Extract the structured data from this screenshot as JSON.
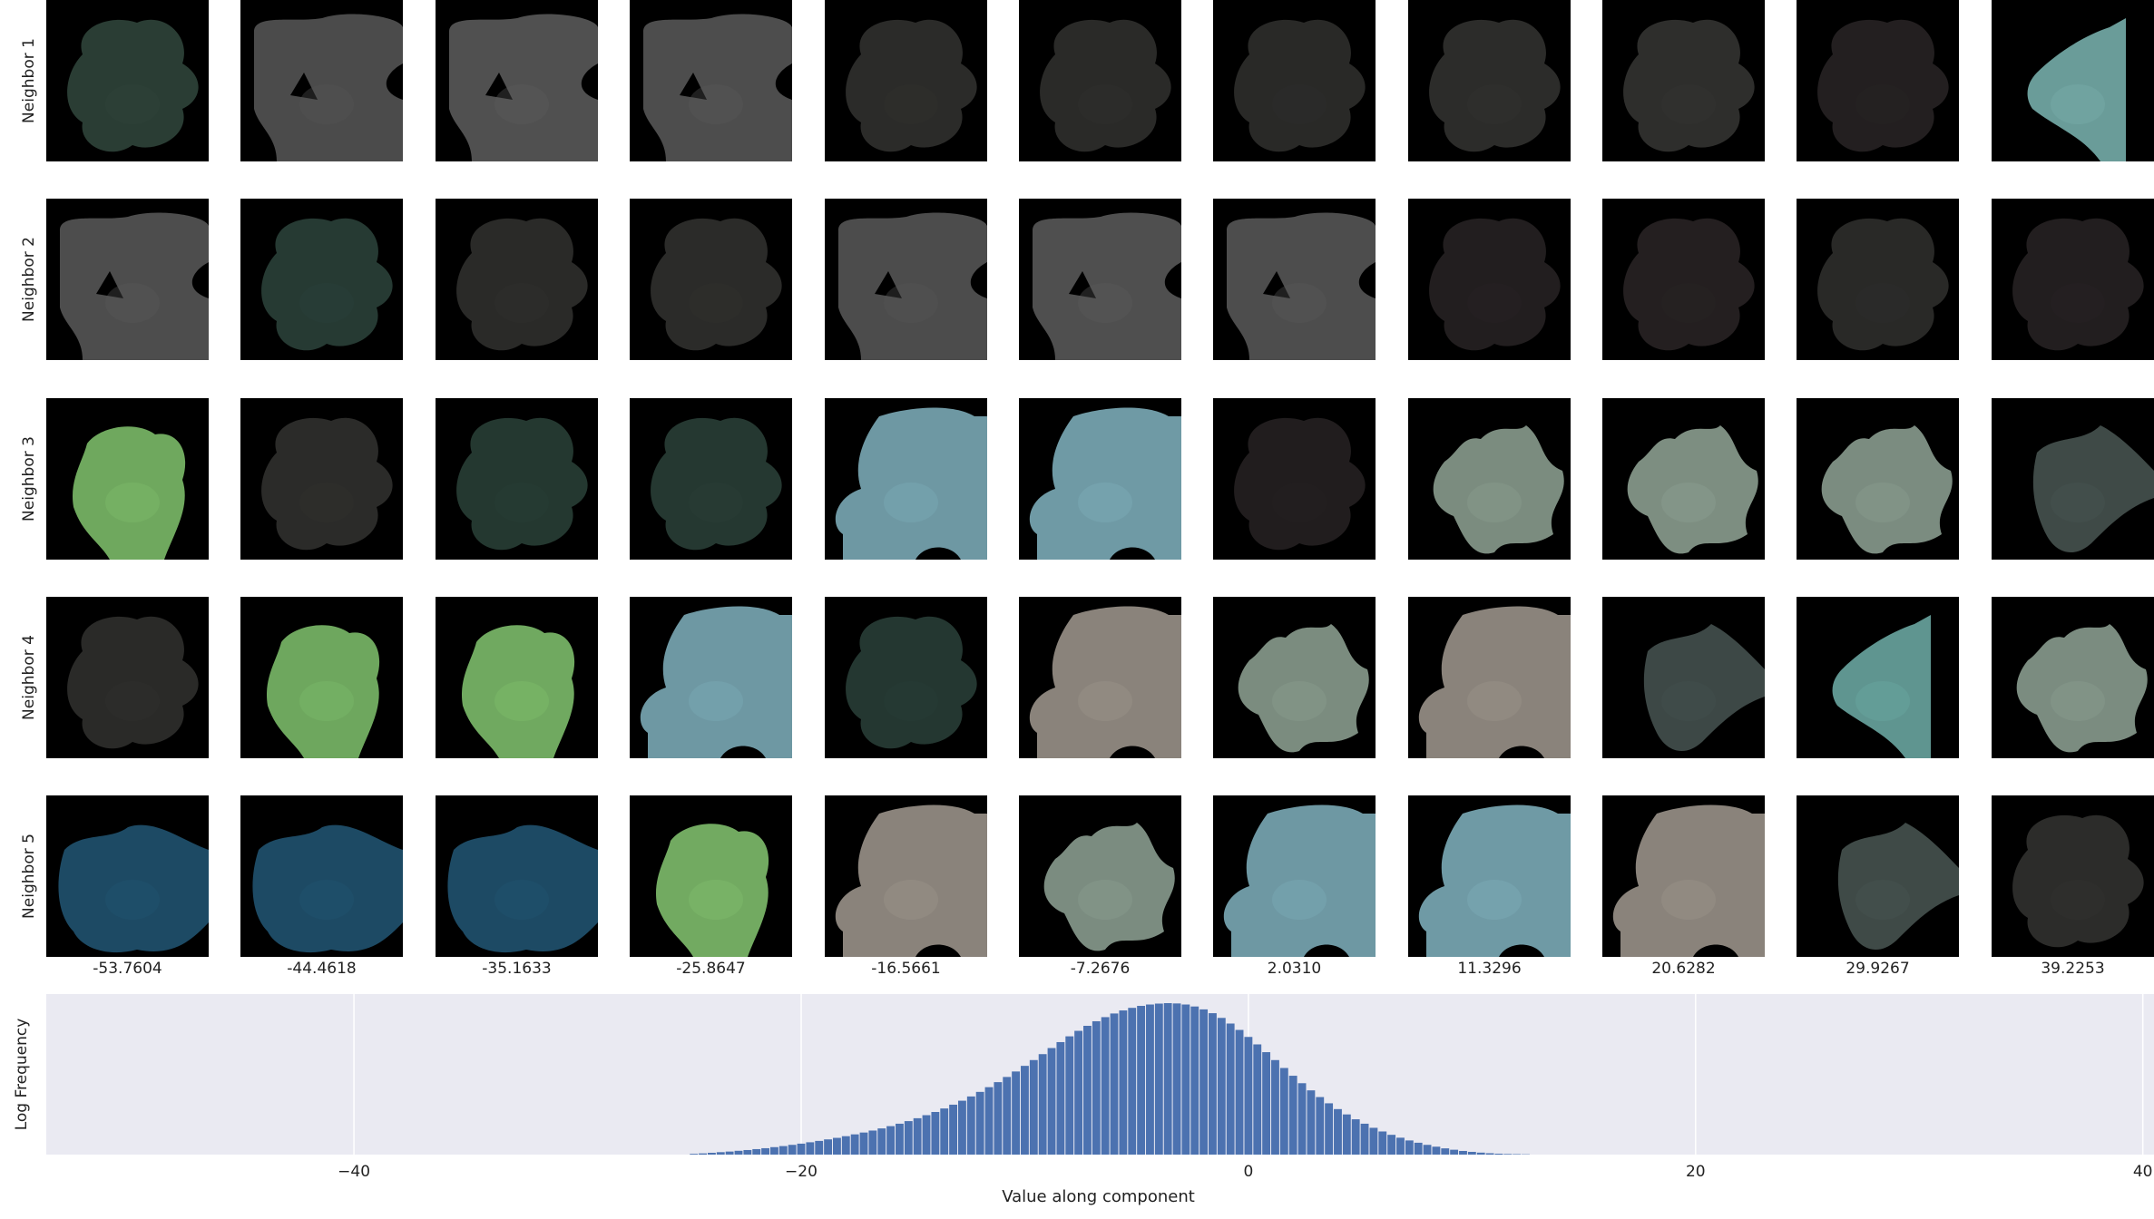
{
  "rows": [
    "Neighbor 1",
    "Neighbor 2",
    "Neighbor 3",
    "Neighbor 4",
    "Neighbor 5"
  ],
  "columns": [
    "-53.7604",
    "-44.4618",
    "-35.1633",
    "-25.8647",
    "-16.5661",
    "-7.2676",
    "2.0310",
    "11.3296",
    "20.6282",
    "29.9267",
    "39.2253"
  ],
  "tiles": [
    [
      {
        "color": "#2a3d34",
        "shape": "cloud"
      },
      {
        "color": "#4b4b4b",
        "shape": "cloud-hole"
      },
      {
        "color": "#505050",
        "shape": "cloud-hole"
      },
      {
        "color": "#4d4d4d",
        "shape": "cloud-hole"
      },
      {
        "color": "#2b2b29",
        "shape": "cloud"
      },
      {
        "color": "#2a2a28",
        "shape": "cloud"
      },
      {
        "color": "#292927",
        "shape": "cloud"
      },
      {
        "color": "#2c2c2a",
        "shape": "cloud"
      },
      {
        "color": "#2e2e2c",
        "shape": "cloud"
      },
      {
        "color": "#231f20",
        "shape": "cloud"
      },
      {
        "color": "#6a9c99",
        "shape": "half"
      }
    ],
    [
      {
        "color": "#4d4d4d",
        "shape": "cloud-hole"
      },
      {
        "color": "#263a33",
        "shape": "cloud"
      },
      {
        "color": "#2a2a28",
        "shape": "cloud"
      },
      {
        "color": "#2b2b29",
        "shape": "cloud"
      },
      {
        "color": "#4c4c4c",
        "shape": "cloud-hole"
      },
      {
        "color": "#4f4f4f",
        "shape": "cloud-hole"
      },
      {
        "color": "#4d4d4d",
        "shape": "cloud-hole"
      },
      {
        "color": "#221e1f",
        "shape": "cloud"
      },
      {
        "color": "#241f20",
        "shape": "cloud"
      },
      {
        "color": "#292927",
        "shape": "cloud"
      },
      {
        "color": "#221e1f",
        "shape": "cloud"
      }
    ],
    [
      {
        "color": "#6fa85e",
        "shape": "blob"
      },
      {
        "color": "#2b2b29",
        "shape": "cloud"
      },
      {
        "color": "#243830",
        "shape": "cloud"
      },
      {
        "color": "#253831",
        "shape": "cloud"
      },
      {
        "color": "#6e98a3",
        "shape": "big"
      },
      {
        "color": "#6f9aa5",
        "shape": "big"
      },
      {
        "color": "#211d1e",
        "shape": "cloud"
      },
      {
        "color": "#7b8c7f",
        "shape": "star"
      },
      {
        "color": "#7d8e81",
        "shape": "star"
      },
      {
        "color": "#7b8c80",
        "shape": "star"
      },
      {
        "color": "#3f4a47",
        "shape": "wing"
      }
    ],
    [
      {
        "color": "#2a2a28",
        "shape": "cloud"
      },
      {
        "color": "#6ea75e",
        "shape": "blob"
      },
      {
        "color": "#70a960",
        "shape": "blob"
      },
      {
        "color": "#6e98a3",
        "shape": "big"
      },
      {
        "color": "#243731",
        "shape": "cloud"
      },
      {
        "color": "#8a837b",
        "shape": "big"
      },
      {
        "color": "#7b8c7f",
        "shape": "star"
      },
      {
        "color": "#8a837b",
        "shape": "big"
      },
      {
        "color": "#3d4846",
        "shape": "wing"
      },
      {
        "color": "#5f9590",
        "shape": "half"
      },
      {
        "color": "#7b8c80",
        "shape": "star"
      }
    ],
    [
      {
        "color": "#1d4a64",
        "shape": "blue"
      },
      {
        "color": "#1d4a64",
        "shape": "blue"
      },
      {
        "color": "#1d4a64",
        "shape": "blue"
      },
      {
        "color": "#72aa61",
        "shape": "blob"
      },
      {
        "color": "#8a837b",
        "shape": "big"
      },
      {
        "color": "#7b8c80",
        "shape": "star"
      },
      {
        "color": "#6e98a3",
        "shape": "big"
      },
      {
        "color": "#6f9aa5",
        "shape": "big"
      },
      {
        "color": "#8a837b",
        "shape": "big"
      },
      {
        "color": "#3f4a47",
        "shape": "wing"
      },
      {
        "color": "#2c2c2a",
        "shape": "cloud"
      }
    ]
  ],
  "chart_data": {
    "type": "bar",
    "xlabel": "Value along component",
    "ylabel": "Log Frequency",
    "xlim": [
      -53.76,
      40.5
    ],
    "xticks": [
      -40,
      -20,
      0,
      20,
      40
    ],
    "xtick_labels": [
      "−40",
      "−20",
      "0",
      "20",
      "40"
    ],
    "grid": true,
    "bar_color": "#4c72b0",
    "background": "#eaeaf2",
    "bin_start": -25.0,
    "bin_width": 0.4,
    "values": [
      0.5,
      0.8,
      1.2,
      1.6,
      2.0,
      2.5,
      3.0,
      3.6,
      4.2,
      4.9,
      5.6,
      6.4,
      7.2,
      8.1,
      9.0,
      10.0,
      11.0,
      12.1,
      13.3,
      14.5,
      15.8,
      17.2,
      18.7,
      20.3,
      22.0,
      23.9,
      25.9,
      28.0,
      30.3,
      32.8,
      35.4,
      38.2,
      41.2,
      44.3,
      47.6,
      51.0,
      54.6,
      58.3,
      62.1,
      66.0,
      70.0,
      73.9,
      77.7,
      81.3,
      84.6,
      87.6,
      90.3,
      92.7,
      94.7,
      96.4,
      97.7,
      98.6,
      99.2,
      99.5,
      99.3,
      98.6,
      97.3,
      95.4,
      92.9,
      89.8,
      86.1,
      81.9,
      77.3,
      72.4,
      67.3,
      62.1,
      56.9,
      51.8,
      46.9,
      42.2,
      37.8,
      33.7,
      29.9,
      26.4,
      23.2,
      20.3,
      17.6,
      15.2,
      13.0,
      11.1,
      9.3,
      7.8,
      6.4,
      5.2,
      4.1,
      3.2,
      2.4,
      1.8,
      1.3,
      0.9,
      0.6,
      0.4,
      0.3,
      0.2
    ]
  }
}
